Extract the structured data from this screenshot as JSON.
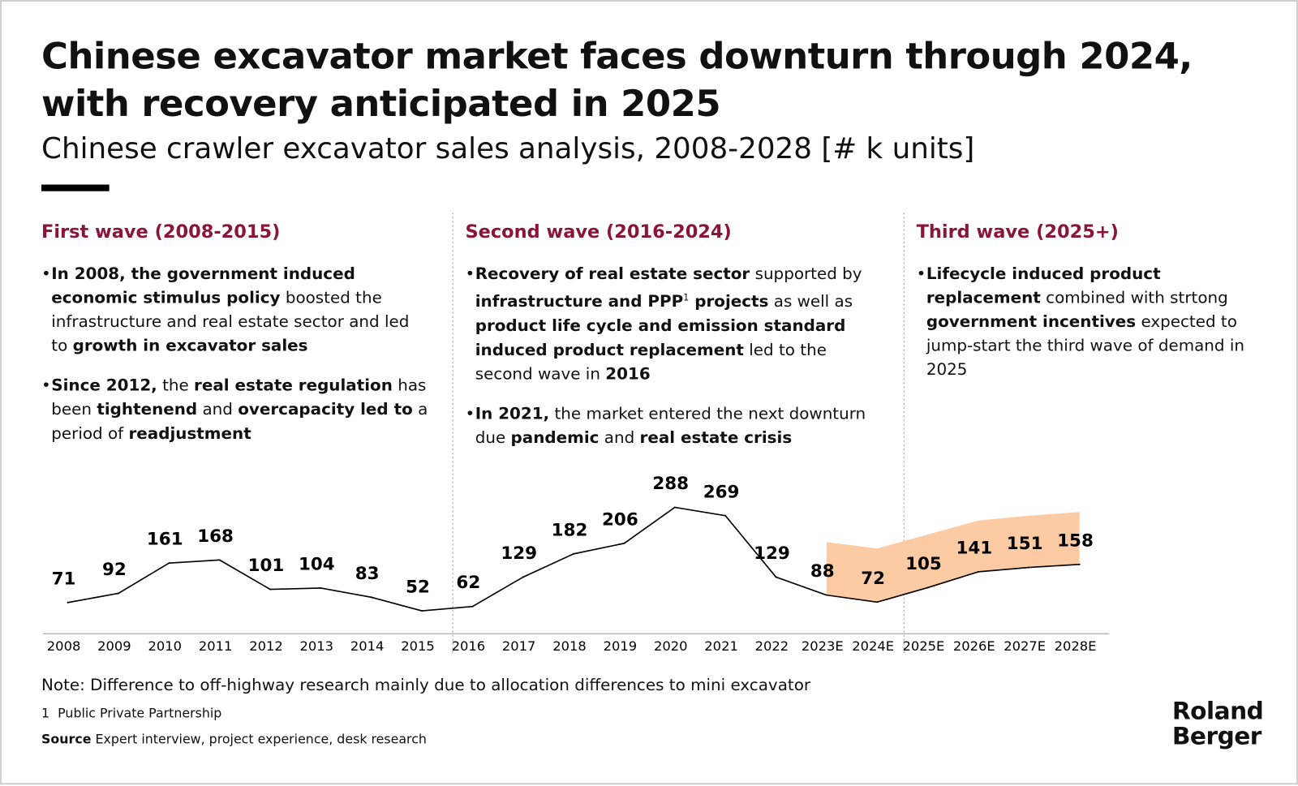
{
  "header": {
    "title": "Chinese excavator market faces downturn through 2024, with recovery anticipated in 2025",
    "subtitle": "Chinese crawler excavator sales analysis, 2008-2028 [# k units]"
  },
  "waves": [
    {
      "heading": "First wave (2008-2015)",
      "bullets": [
        [
          {
            "t": "In 2008, the government induced economic stimulus policy",
            "b": true
          },
          {
            "t": " boosted the infrastructure and real estate sector and led to "
          },
          {
            "t": "growth in excavator sales",
            "b": true
          }
        ],
        [
          {
            "t": "Since 2012,",
            "b": true
          },
          {
            "t": " the "
          },
          {
            "t": "real estate regulation",
            "b": true
          },
          {
            "t": " has been "
          },
          {
            "t": "tightenend",
            "b": true
          },
          {
            "t": " and "
          },
          {
            "t": "overcapacity led to",
            "b": true
          },
          {
            "t": " a period of "
          },
          {
            "t": "readjustment",
            "b": true
          }
        ]
      ]
    },
    {
      "heading": "Second wave (2016-2024)",
      "bullets": [
        [
          {
            "t": "Recovery of real estate sector",
            "b": true
          },
          {
            "t": " supported by "
          },
          {
            "t": "infrastructure and PPP",
            "b": true
          },
          {
            "t": "1",
            "sup": true
          },
          {
            "t": " projects",
            "b": true
          },
          {
            "t": " as well as "
          },
          {
            "t": "product life cycle and emission standard induced product replacement",
            "b": true
          },
          {
            "t": " led to the second wave in "
          },
          {
            "t": "2016",
            "b": true
          }
        ],
        [
          {
            "t": "In 2021,",
            "b": true
          },
          {
            "t": " the market entered the next downturn due "
          },
          {
            "t": "pandemic",
            "b": true
          },
          {
            "t": " and "
          },
          {
            "t": "real estate crisis",
            "b": true
          }
        ]
      ]
    },
    {
      "heading": "Third wave (2025+)",
      "bullets": [
        [
          {
            "t": "Lifecycle induced product replacement",
            "b": true
          },
          {
            "t": " combined with strtong "
          },
          {
            "t": "government incentives",
            "b": true
          },
          {
            "t": " expected to jump-start the third wave of demand in 2025"
          }
        ]
      ]
    }
  ],
  "chart_data": {
    "type": "line",
    "categories": [
      "2008",
      "2009",
      "2010",
      "2011",
      "2012",
      "2013",
      "2014",
      "2015",
      "2016",
      "2017",
      "2018",
      "2019",
      "2020",
      "2021",
      "2022",
      "2023E",
      "2024E",
      "2025E",
      "2026E",
      "2027E",
      "2028E"
    ],
    "values": [
      71,
      92,
      161,
      168,
      101,
      104,
      83,
      52,
      62,
      129,
      182,
      206,
      288,
      269,
      129,
      88,
      72,
      105,
      141,
      151,
      158
    ],
    "range_high": [
      null,
      null,
      null,
      null,
      null,
      null,
      null,
      null,
      null,
      null,
      null,
      null,
      null,
      null,
      null,
      209,
      194,
      226,
      258,
      269,
      277
    ],
    "color": "#000000",
    "band_color": "#fccba3",
    "ylim": [
      0,
      300
    ]
  },
  "footer": {
    "note": "Note: Difference to off-highway research mainly due to allocation differences to mini excavator",
    "footnote_number": "1",
    "footnote": "Public Private Partnership",
    "source_label": "Source",
    "source": "Expert interview, project experience, desk research",
    "logo": [
      "Roland",
      "Berger"
    ]
  }
}
